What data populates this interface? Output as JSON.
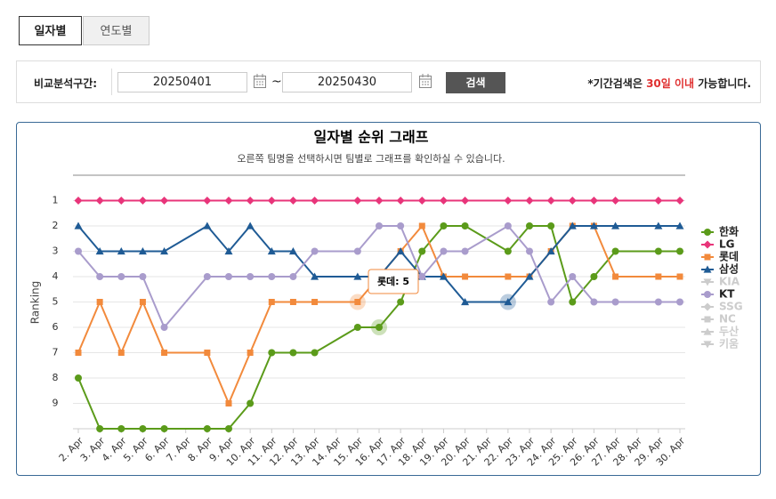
{
  "tabs": [
    "일자별",
    "연도별"
  ],
  "search": {
    "label": "비교분석구간:",
    "start": "20250401",
    "separator": "~",
    "end": "20250430",
    "button": "검색",
    "note": [
      "*기간검색은 ",
      "30일 이내",
      " 가능합니다."
    ]
  },
  "chart_data": {
    "type": "line",
    "title": "일자별 순위 그래프",
    "subtitle": "오른쪽 팀명을 선택하시면 팀별로 그래프를 확인하실 수 있습니다.",
    "y_label": "Ranking",
    "categories": [
      "2. Apr",
      "3. Apr",
      "4. Apr",
      "5. Apr",
      "6. Apr",
      "7. Apr",
      "8. Apr",
      "9. Apr",
      "10. Apr",
      "11. Apr",
      "12. Apr",
      "13. Apr",
      "14. Apr",
      "15. Apr",
      "16. Apr",
      "17. Apr",
      "18. Apr",
      "19. Apr",
      "20. Apr",
      "21. Apr",
      "22. Apr",
      "23. Apr",
      "24. Apr",
      "25. Apr",
      "26. Apr",
      "27. Apr",
      "28. Apr",
      "29. Apr",
      "30. Apr"
    ],
    "ylim": [
      10,
      0
    ],
    "yticks": [
      1,
      2,
      3,
      4,
      5,
      6,
      7,
      8,
      9
    ],
    "grid": true,
    "legend": "right",
    "tooltip": "롯데: 5",
    "series": [
      {
        "name": "한화",
        "color": "#5b9b1a",
        "marker": "circle",
        "visible": true,
        "values": [
          8,
          10,
          10,
          10,
          10,
          null,
          10,
          10,
          9,
          7,
          7,
          7,
          null,
          6,
          6,
          5,
          3,
          2,
          2,
          null,
          3,
          2,
          2,
          5,
          4,
          3,
          null,
          3,
          3
        ]
      },
      {
        "name": "LG",
        "color": "#e8357a",
        "marker": "diamond",
        "visible": true,
        "values": [
          1,
          1,
          1,
          1,
          1,
          null,
          1,
          1,
          1,
          1,
          1,
          1,
          null,
          1,
          1,
          1,
          1,
          1,
          1,
          null,
          1,
          1,
          1,
          1,
          1,
          1,
          null,
          1,
          1
        ]
      },
      {
        "name": "롯데",
        "color": "#f28a3c",
        "marker": "square",
        "visible": true,
        "values": [
          7,
          5,
          7,
          5,
          7,
          null,
          7,
          9,
          7,
          5,
          5,
          5,
          null,
          5,
          4,
          3,
          2,
          4,
          4,
          null,
          4,
          4,
          3,
          2,
          2,
          4,
          null,
          4,
          4
        ]
      },
      {
        "name": "삼성",
        "color": "#1f5b95",
        "marker": "triangle",
        "visible": true,
        "values": [
          2,
          3,
          3,
          3,
          3,
          null,
          2,
          3,
          2,
          3,
          3,
          4,
          null,
          4,
          4,
          3,
          4,
          4,
          5,
          null,
          5,
          4,
          3,
          2,
          2,
          2,
          null,
          2,
          2
        ]
      },
      {
        "name": "KIA",
        "color": "#cccccc",
        "marker": "triangle-down",
        "visible": false
      },
      {
        "name": "KT",
        "color": "#a99ccc",
        "marker": "circle",
        "visible": true,
        "values": [
          3,
          4,
          4,
          4,
          6,
          null,
          4,
          4,
          4,
          4,
          4,
          3,
          null,
          3,
          2,
          2,
          4,
          3,
          3,
          null,
          2,
          3,
          5,
          4,
          5,
          5,
          null,
          5,
          5
        ]
      },
      {
        "name": "SSG",
        "color": "#cccccc",
        "marker": "diamond",
        "visible": false
      },
      {
        "name": "NC",
        "color": "#cccccc",
        "marker": "square",
        "visible": false
      },
      {
        "name": "두산",
        "color": "#cccccc",
        "marker": "triangle",
        "visible": false
      },
      {
        "name": "키움",
        "color": "#cccccc",
        "marker": "triangle-down",
        "visible": false
      }
    ]
  }
}
